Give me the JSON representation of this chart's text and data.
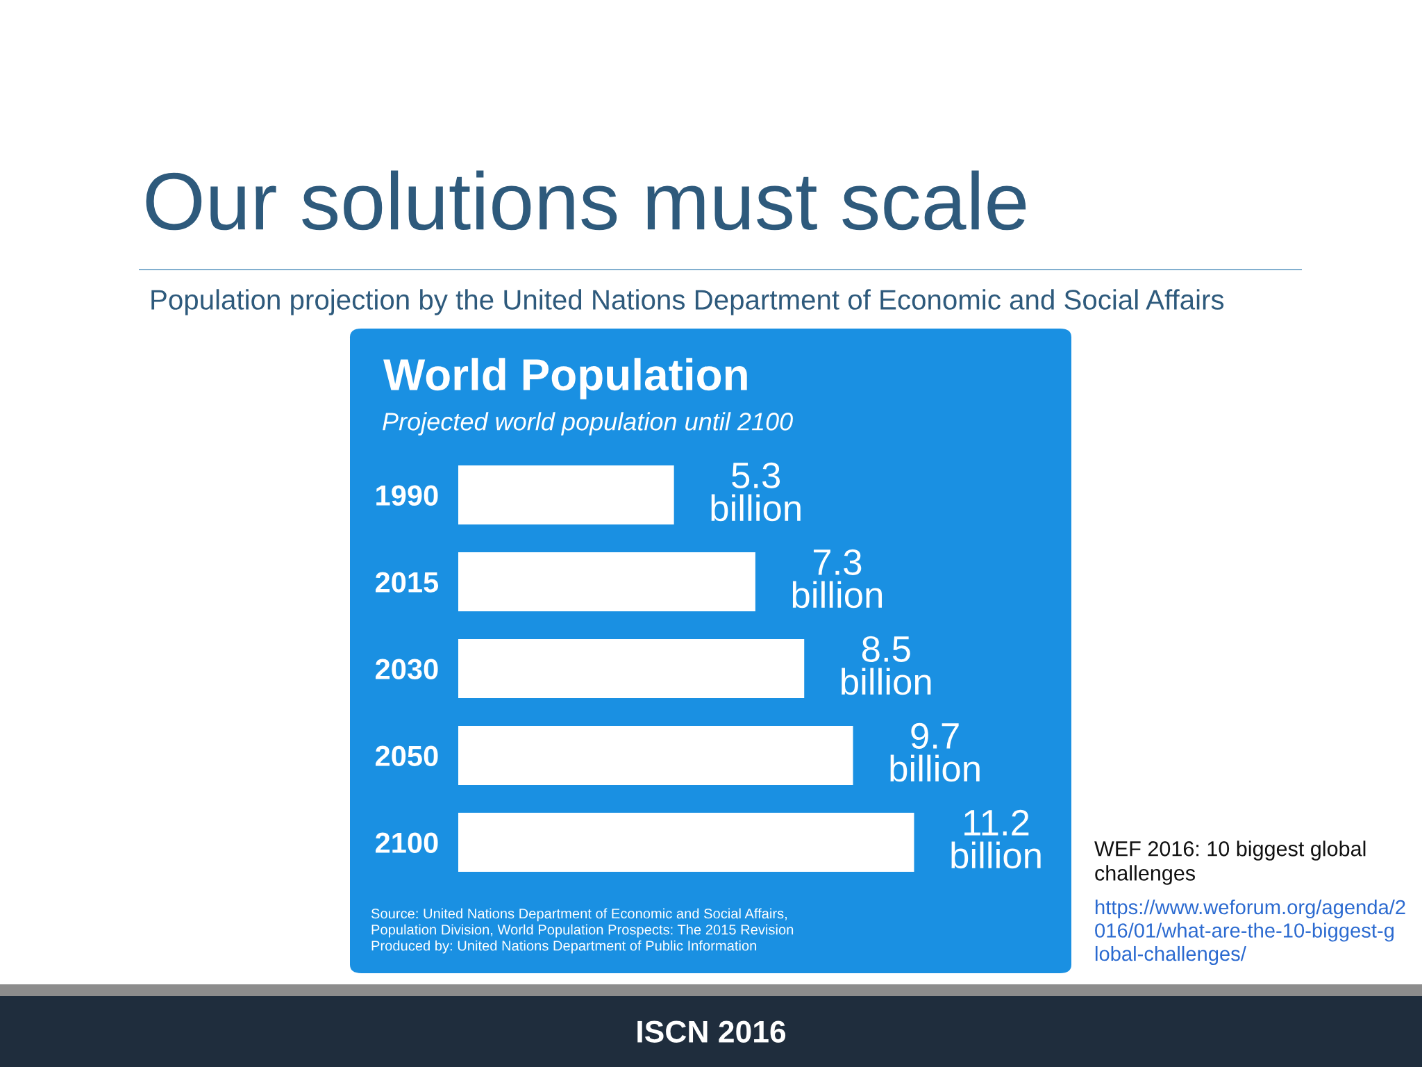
{
  "chart_data": {
    "type": "bar",
    "orientation": "horizontal",
    "title": "World Population",
    "subtitle": "Projected world population until 2100",
    "categories": [
      "1990",
      "2015",
      "2030",
      "2050",
      "2100"
    ],
    "values": [
      5300000000,
      7300000000,
      8500000000,
      9700000000,
      11200000000
    ],
    "value_labels": [
      "5.3\nbillion",
      "7.3\nbillion",
      "8.5\nbillion",
      "9.7\nbillion",
      "11.2\nbillion"
    ],
    "color": "#ffffff",
    "tick_labels": "y",
    "grid": false,
    "legend": false,
    "annotations": [
      "Our solutions must scale",
      "Population projection by the United Nations Department of Economic and Social Affairs",
      "Source: United Nations Department of Economic and Social Affairs,\nPopulation Division, World Population Prospects: The 2015 Revision\nProduced by: United Nations Department of Public Information",
      "WEF 2016: 10 biggest global\nchallenges",
      "https://www.weforum.org/agenda/2016/01/what-are-the-10-biggest-global-challenges/",
      "ISCN 2016"
    ]
  }
}
